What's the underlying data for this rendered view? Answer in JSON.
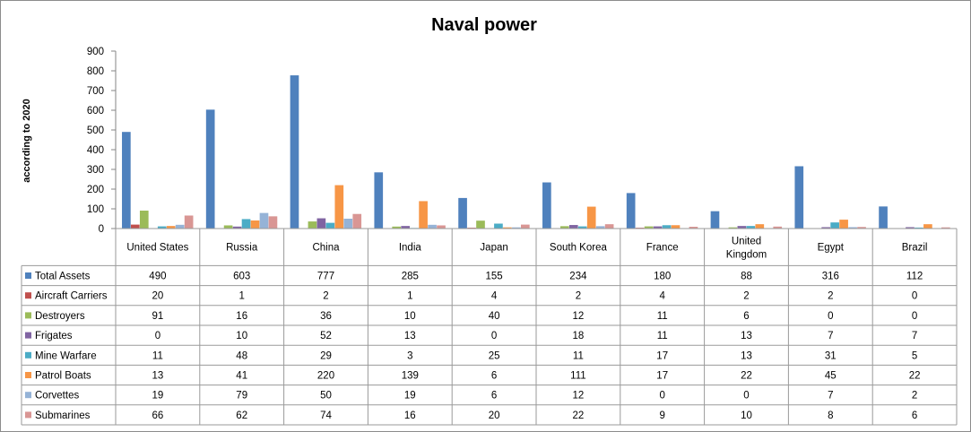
{
  "chart_data": {
    "type": "bar",
    "title": "Naval power",
    "ylabel": "according to 2020",
    "xlabel": "",
    "ylim": [
      0,
      900
    ],
    "yticks": [
      "0",
      "100",
      "200",
      "300",
      "400",
      "500",
      "600",
      "700",
      "800",
      "900"
    ],
    "grid": false,
    "legend": "data-table",
    "categories": [
      "United States",
      "Russia",
      "China",
      "India",
      "Japan",
      "South Korea",
      "France",
      "United Kingdom",
      "Egypt",
      "Brazil"
    ],
    "series": [
      {
        "name": "Total Assets",
        "color": "#4f81bd",
        "values": [
          490,
          603,
          777,
          285,
          155,
          234,
          180,
          88,
          316,
          112
        ]
      },
      {
        "name": "Aircraft Carriers",
        "color": "#c0504d",
        "values": [
          20,
          1,
          2,
          1,
          4,
          2,
          4,
          2,
          2,
          0
        ]
      },
      {
        "name": "Destroyers",
        "color": "#9bbb59",
        "values": [
          91,
          16,
          36,
          10,
          40,
          12,
          11,
          6,
          0,
          0
        ]
      },
      {
        "name": "Frigates",
        "color": "#8064a2",
        "values": [
          0,
          10,
          52,
          13,
          0,
          18,
          11,
          13,
          7,
          7
        ]
      },
      {
        "name": "Mine Warfare",
        "color": "#4bacc6",
        "values": [
          11,
          48,
          29,
          3,
          25,
          11,
          17,
          13,
          31,
          5
        ]
      },
      {
        "name": "Patrol Boats",
        "color": "#f79646",
        "values": [
          13,
          41,
          220,
          139,
          6,
          111,
          17,
          22,
          45,
          22
        ]
      },
      {
        "name": "Corvettes",
        "color": "#95b3d7",
        "values": [
          19,
          79,
          50,
          19,
          6,
          12,
          0,
          0,
          7,
          2
        ]
      },
      {
        "name": "Submarines",
        "color": "#d99694",
        "values": [
          66,
          62,
          74,
          16,
          20,
          22,
          9,
          10,
          8,
          6
        ]
      }
    ]
  }
}
